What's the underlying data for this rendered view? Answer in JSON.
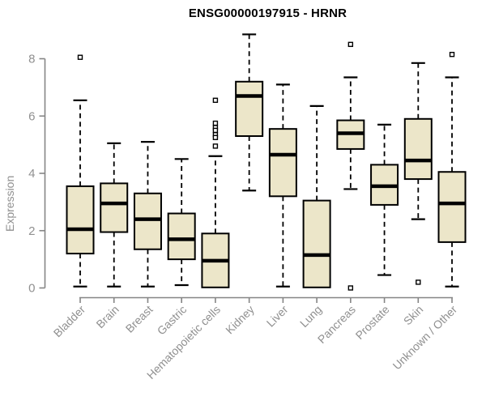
{
  "title": "ENSG00000197915 - HRNR",
  "chart_data": {
    "type": "boxplot",
    "title": "ENSG00000197915 - HRNR",
    "xlabel": "",
    "ylabel": "Expression",
    "ylim": [
      0,
      8.9
    ],
    "yticks": [
      0,
      2,
      4,
      6,
      8
    ],
    "grid": false,
    "legend": null,
    "categories": [
      "Bladder",
      "Brain",
      "Breast",
      "Gastric",
      "Hematopoietic cells",
      "Kidney",
      "Liver",
      "Lung",
      "Pancreas",
      "Prostate",
      "Skin",
      "Unknown / Other"
    ],
    "series": [
      {
        "category": "Bladder",
        "whisker_low": 0.05,
        "q1": 1.2,
        "median": 2.05,
        "q3": 3.55,
        "whisker_high": 6.55,
        "outliers": [
          8.05
        ]
      },
      {
        "category": "Brain",
        "whisker_low": 0.05,
        "q1": 1.95,
        "median": 2.95,
        "q3": 3.65,
        "whisker_high": 5.05,
        "outliers": []
      },
      {
        "category": "Breast",
        "whisker_low": 0.05,
        "q1": 1.35,
        "median": 2.4,
        "q3": 3.3,
        "whisker_high": 5.1,
        "outliers": []
      },
      {
        "category": "Gastric",
        "whisker_low": 0.1,
        "q1": 1.0,
        "median": 1.7,
        "q3": 2.6,
        "whisker_high": 4.5,
        "outliers": []
      },
      {
        "category": "Hematopoietic cells",
        "whisker_low": 0.02,
        "q1": 0.02,
        "median": 0.95,
        "q3": 1.9,
        "whisker_high": 4.6,
        "outliers": [
          6.55,
          5.75,
          5.6,
          5.5,
          5.35,
          5.25,
          4.95
        ]
      },
      {
        "category": "Kidney",
        "whisker_low": 3.4,
        "q1": 5.3,
        "median": 6.7,
        "q3": 7.2,
        "whisker_high": 8.85,
        "outliers": []
      },
      {
        "category": "Liver",
        "whisker_low": 0.05,
        "q1": 3.2,
        "median": 4.65,
        "q3": 5.55,
        "whisker_high": 7.1,
        "outliers": []
      },
      {
        "category": "Lung",
        "whisker_low": 0.02,
        "q1": 0.02,
        "median": 1.15,
        "q3": 3.05,
        "whisker_high": 6.35,
        "outliers": []
      },
      {
        "category": "Pancreas",
        "whisker_low": 3.45,
        "q1": 4.85,
        "median": 5.4,
        "q3": 5.85,
        "whisker_high": 7.35,
        "outliers": [
          8.5,
          0.0
        ]
      },
      {
        "category": "Prostate",
        "whisker_low": 0.45,
        "q1": 2.9,
        "median": 3.55,
        "q3": 4.3,
        "whisker_high": 5.7,
        "outliers": []
      },
      {
        "category": "Skin",
        "whisker_low": 2.4,
        "q1": 3.8,
        "median": 4.45,
        "q3": 5.9,
        "whisker_high": 7.85,
        "outliers": [
          0.2
        ]
      },
      {
        "category": "Unknown / Other",
        "whisker_low": 0.05,
        "q1": 1.6,
        "median": 2.95,
        "q3": 4.05,
        "whisker_high": 7.35,
        "outliers": [
          8.15
        ]
      }
    ],
    "colors": {
      "box_fill": "#ECE6C9",
      "box_border": "#000000",
      "median": "#000000",
      "whisker": "#000000",
      "outlier_fill": "#ffffff",
      "outlier_border": "#000000",
      "axis": "#858585",
      "tick_label": "#909090",
      "title": "#000000",
      "background": "#ffffff"
    }
  }
}
